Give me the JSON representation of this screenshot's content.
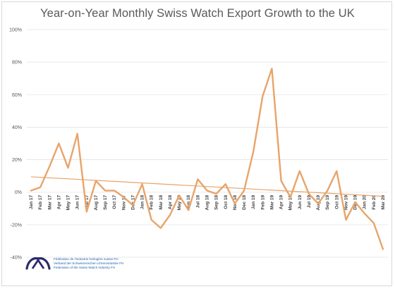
{
  "chart_data": {
    "type": "line",
    "title": "Year-on-Year Monthly Swiss Watch Export Growth to the UK",
    "xlabel": "",
    "ylabel": "",
    "ylim": [
      -40,
      100
    ],
    "yticks": [
      -40,
      -20,
      0,
      20,
      40,
      60,
      80,
      100
    ],
    "ytick_labels": [
      "-40%",
      "-20%",
      "0%",
      "20%",
      "40%",
      "60%",
      "80%",
      "100%"
    ],
    "categories": [
      "Jan 17",
      "Feb 17",
      "Mar 17",
      "Apr 17",
      "May 17",
      "Jun 17",
      "Jul 17",
      "Aug 17",
      "Sep 17",
      "Oct 17",
      "Nov 17",
      "Dec 17",
      "Jan 18",
      "Feb 18",
      "Mar 18",
      "Apr 18",
      "May 18",
      "Jun 18",
      "Jul 18",
      "Aug 18",
      "Sep 18",
      "Oct 18",
      "Nov 18",
      "Dec 18",
      "Jan 19",
      "Feb 19",
      "Mar 19",
      "Apr 19",
      "May 19",
      "Jun 19",
      "Jul 19",
      "Aug 19",
      "Sep 19",
      "Oct 19",
      "Nov 19",
      "Dec 19",
      "Jan 20",
      "Feb 20",
      "Mar 20"
    ],
    "series": [
      {
        "values": [
          1,
          3,
          16,
          30,
          15,
          36,
          -12,
          7,
          1,
          1,
          -3,
          -8,
          5,
          -17,
          -22,
          -14,
          -2,
          -11,
          8,
          1,
          -1,
          5,
          -7,
          1,
          25,
          59,
          76,
          7,
          -3,
          13,
          -1,
          -7,
          1,
          13,
          -17,
          -6,
          -13,
          -19,
          -35
        ],
        "color": "#e8a46a"
      }
    ],
    "trendline": {
      "start": 9.5,
      "end": -2.5,
      "color": "#e8a46a"
    },
    "grid": true,
    "legend": "none"
  },
  "logo": {
    "lines": [
      "Fédération de l'Industrie horlogère suisse FH",
      "Verband der Schweizerischen Uhrenindustrie FH",
      "Federation of the Swiss Watch Industry FH"
    ]
  }
}
